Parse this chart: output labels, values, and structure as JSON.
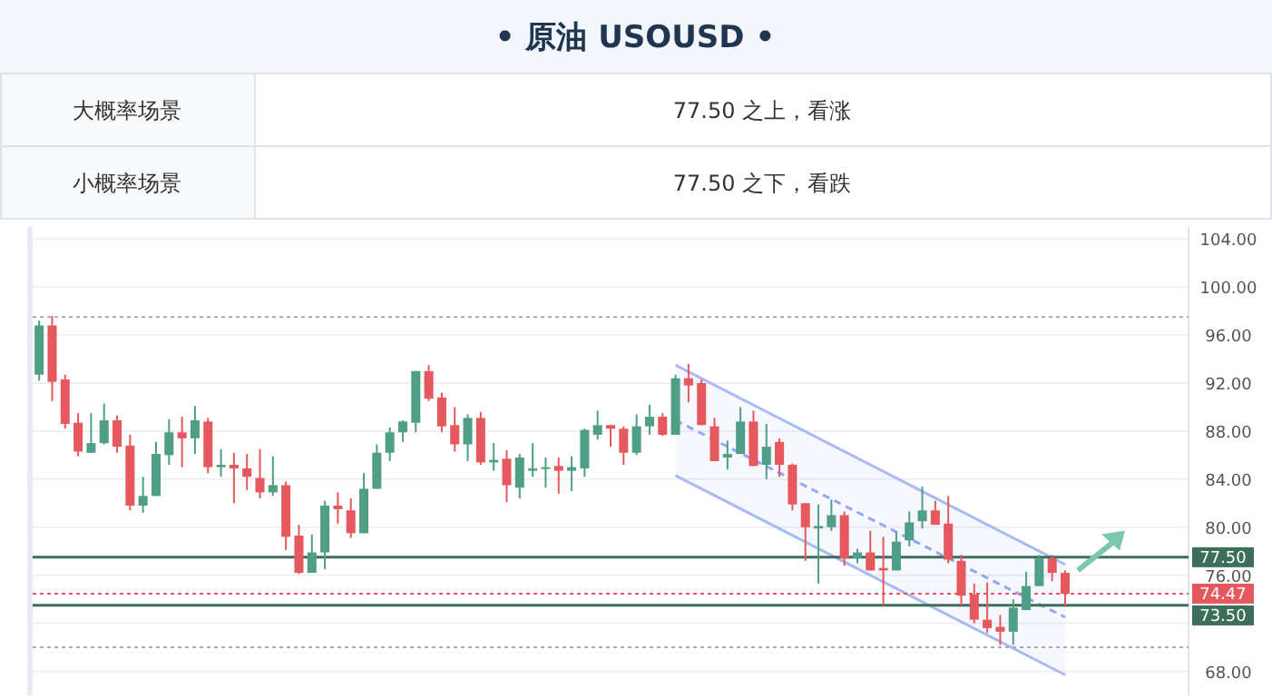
{
  "chart_data": {
    "type": "candlestick",
    "title": "• 原油 USOUSD •",
    "annotations": [
      "大概率场景",
      "77.50 之上，看涨",
      "小概率场景",
      "77.50 之下，看跌"
    ],
    "categories": [
      null,
      null,
      null,
      null,
      null,
      null,
      null,
      null,
      null,
      null,
      null,
      null,
      null,
      null,
      null,
      null,
      null,
      null,
      null,
      null,
      null,
      null,
      null,
      null,
      null,
      null,
      null,
      null,
      null,
      null,
      null,
      null,
      null,
      null,
      null,
      null,
      null,
      null,
      null,
      null,
      null,
      null,
      null,
      null,
      null,
      null,
      null,
      null,
      null,
      null,
      null,
      null,
      null,
      null,
      null,
      null,
      null,
      null,
      null,
      null,
      null,
      null,
      null,
      null,
      null,
      null,
      null,
      null,
      null,
      null,
      null,
      null,
      null,
      null,
      null,
      null,
      null,
      null,
      null,
      null,
      null,
      null,
      null,
      null,
      null,
      null,
      null,
      null,
      null
    ],
    "ohlc": [
      [
        92.7,
        97.2,
        92.2,
        96.8
      ],
      [
        96.8,
        97.6,
        90.5,
        92.1
      ],
      [
        92.3,
        92.7,
        88.2,
        88.6
      ],
      [
        88.7,
        89.5,
        85.9,
        86.3
      ],
      [
        86.2,
        89.5,
        86.2,
        87.0
      ],
      [
        87.0,
        90.3,
        86.9,
        88.9
      ],
      [
        88.9,
        89.3,
        86.2,
        86.7
      ],
      [
        86.8,
        87.7,
        81.4,
        81.8
      ],
      [
        81.8,
        84.2,
        81.2,
        82.6
      ],
      [
        82.6,
        87.1,
        82.6,
        86.1
      ],
      [
        86.0,
        89.0,
        85.2,
        87.9
      ],
      [
        87.9,
        89.2,
        85.0,
        87.4
      ],
      [
        87.4,
        90.1,
        86.1,
        88.9
      ],
      [
        88.8,
        89.1,
        84.5,
        85.0
      ],
      [
        85.0,
        86.5,
        84.2,
        85.2
      ],
      [
        85.2,
        86.2,
        82.0,
        84.9
      ],
      [
        84.9,
        86.1,
        83.1,
        84.2
      ],
      [
        84.1,
        86.5,
        82.4,
        82.9
      ],
      [
        82.9,
        85.9,
        82.6,
        83.5
      ],
      [
        83.5,
        83.8,
        78.1,
        79.2
      ],
      [
        79.3,
        80.2,
        76.1,
        76.2
      ],
      [
        76.2,
        79.4,
        76.2,
        77.9
      ],
      [
        77.9,
        82.2,
        76.5,
        81.8
      ],
      [
        81.8,
        82.9,
        80.3,
        81.5
      ],
      [
        81.4,
        82.4,
        79.1,
        79.5
      ],
      [
        79.5,
        84.5,
        79.5,
        83.2
      ],
      [
        83.2,
        86.9,
        83.2,
        86.2
      ],
      [
        86.2,
        88.3,
        85.5,
        87.9
      ],
      [
        87.9,
        88.9,
        87.1,
        88.8
      ],
      [
        88.7,
        93.0,
        87.9,
        93.0
      ],
      [
        93.0,
        93.5,
        90.5,
        90.7
      ],
      [
        90.8,
        91.2,
        87.9,
        88.4
      ],
      [
        88.5,
        90.0,
        86.3,
        86.9
      ],
      [
        86.9,
        89.4,
        85.5,
        89.1
      ],
      [
        89.1,
        89.6,
        85.2,
        85.4
      ],
      [
        85.4,
        87.0,
        84.7,
        85.6
      ],
      [
        85.7,
        86.4,
        82.1,
        83.5
      ],
      [
        83.3,
        86.1,
        82.4,
        85.8
      ],
      [
        84.7,
        87.0,
        84.2,
        84.9
      ],
      [
        84.9,
        85.8,
        83.3,
        85.0
      ],
      [
        85.1,
        85.8,
        82.8,
        84.7
      ],
      [
        84.7,
        85.9,
        83.0,
        85.0
      ],
      [
        84.9,
        88.2,
        84.2,
        88.1
      ],
      [
        87.7,
        89.7,
        87.3,
        88.5
      ],
      [
        88.5,
        88.5,
        86.7,
        88.2
      ],
      [
        88.2,
        88.4,
        85.2,
        86.2
      ],
      [
        86.2,
        89.4,
        86.0,
        88.4
      ],
      [
        88.4,
        90.2,
        87.7,
        89.2
      ],
      [
        89.2,
        89.5,
        87.6,
        87.7
      ],
      [
        87.7,
        92.7,
        87.7,
        92.4
      ],
      [
        92.4,
        93.6,
        90.4,
        91.8
      ],
      [
        92.0,
        92.3,
        88.5,
        88.5
      ],
      [
        88.4,
        89.1,
        85.5,
        85.5
      ],
      [
        85.8,
        87.2,
        84.8,
        86.1
      ],
      [
        86.1,
        90.0,
        86.1,
        88.8
      ],
      [
        88.8,
        89.7,
        85.1,
        85.1
      ],
      [
        85.2,
        88.6,
        84.0,
        86.7
      ],
      [
        87.1,
        87.4,
        84.2,
        85.2
      ],
      [
        85.2,
        85.3,
        81.4,
        81.9
      ],
      [
        82.0,
        82.0,
        77.2,
        80.0
      ],
      [
        79.9,
        81.9,
        75.3,
        80.1
      ],
      [
        80.0,
        82.3,
        79.7,
        81.0
      ],
      [
        81.0,
        81.3,
        76.8,
        77.4
      ],
      [
        77.4,
        78.2,
        77.0,
        77.9
      ],
      [
        77.9,
        79.7,
        76.4,
        76.4
      ],
      [
        76.6,
        79.2,
        73.5,
        76.4
      ],
      [
        76.4,
        79.6,
        76.4,
        78.8
      ],
      [
        78.9,
        81.3,
        78.4,
        80.4
      ],
      [
        80.5,
        83.4,
        79.9,
        81.4
      ],
      [
        81.4,
        82.2,
        80.2,
        80.2
      ],
      [
        80.3,
        82.6,
        77.0,
        77.3
      ],
      [
        77.2,
        77.7,
        73.5,
        74.3
      ],
      [
        74.4,
        75.3,
        72.0,
        72.3
      ],
      [
        72.3,
        75.4,
        71.2,
        71.6
      ],
      [
        71.7,
        72.7,
        70.2,
        71.3
      ],
      [
        71.3,
        74.0,
        70.2,
        73.3
      ],
      [
        73.1,
        76.3,
        73.1,
        75.1
      ],
      [
        75.1,
        77.7,
        75.1,
        77.4
      ],
      [
        77.4,
        77.7,
        75.5,
        76.2
      ],
      [
        76.2,
        76.4,
        73.5,
        74.47
      ],
      null,
      null,
      null,
      null,
      null,
      null,
      null,
      null,
      null
    ],
    "colors": [
      "#4f9e86",
      "#e5585d",
      "#e5585d",
      "#e5585d",
      "#4f9e86",
      "#4f9e86",
      "#e5585d",
      "#e5585d",
      "#4f9e86",
      "#4f9e86",
      "#4f9e86",
      "#e5585d",
      "#4f9e86",
      "#e5585d",
      "#4f9e86",
      "#e5585d",
      "#e5585d",
      "#e5585d",
      "#4f9e86",
      "#e5585d",
      "#e5585d",
      "#4f9e86",
      "#4f9e86",
      "#e5585d",
      "#e5585d",
      "#4f9e86",
      "#4f9e86",
      "#4f9e86",
      "#4f9e86",
      "#4f9e86",
      "#e5585d",
      "#e5585d",
      "#e5585d",
      "#4f9e86",
      "#e5585d",
      "#4f9e86",
      "#e5585d",
      "#4f9e86",
      "#4f9e86",
      "#4f9e86",
      "#e5585d",
      "#4f9e86",
      "#4f9e86",
      "#4f9e86",
      "#e5585d",
      "#e5585d",
      "#4f9e86",
      "#4f9e86",
      "#e5585d",
      "#4f9e86",
      "#e5585d",
      "#e5585d",
      "#e5585d",
      "#4f9e86",
      "#4f9e86",
      "#e5585d",
      "#4f9e86",
      "#e5585d",
      "#e5585d",
      "#e5585d",
      "#4f9e86",
      "#4f9e86",
      "#e5585d",
      "#4f9e86",
      "#e5585d",
      "#e5585d",
      "#4f9e86",
      "#4f9e86",
      "#4f9e86",
      "#e5585d",
      "#e5585d",
      "#e5585d",
      "#e5585d",
      "#e5585d",
      "#e5585d",
      "#4f9e86",
      "#4f9e86",
      "#4f9e86",
      "#e5585d",
      "#e5585d",
      null,
      null,
      null,
      null,
      null,
      null,
      null,
      null,
      null
    ],
    "series": [
      {
        "type": "line",
        "color": "#aabcf3",
        "line_style": "solid",
        "values": [
          null,
          null,
          null,
          null,
          null,
          null,
          null,
          null,
          null,
          null,
          null,
          null,
          null,
          null,
          null,
          null,
          null,
          null,
          null,
          null,
          null,
          null,
          null,
          null,
          null,
          null,
          null,
          null,
          null,
          null,
          null,
          null,
          null,
          null,
          null,
          null,
          null,
          null,
          null,
          null,
          null,
          null,
          null,
          null,
          null,
          null,
          null,
          null,
          null,
          93.5,
          null,
          null,
          null,
          null,
          null,
          null,
          null,
          null,
          null,
          null,
          null,
          null,
          null,
          null,
          null,
          null,
          null,
          null,
          null,
          null,
          null,
          null,
          null,
          null,
          null,
          null,
          null,
          null,
          null,
          76.9,
          null,
          null,
          null,
          null,
          null,
          null,
          null,
          null,
          null
        ]
      },
      {
        "type": "line",
        "color": "#aabcf3",
        "line_style": "solid",
        "values": [
          null,
          null,
          null,
          null,
          null,
          null,
          null,
          null,
          null,
          null,
          null,
          null,
          null,
          null,
          null,
          null,
          null,
          null,
          null,
          null,
          null,
          null,
          null,
          null,
          null,
          null,
          null,
          null,
          null,
          null,
          null,
          null,
          null,
          null,
          null,
          null,
          null,
          null,
          null,
          null,
          null,
          null,
          null,
          null,
          null,
          null,
          null,
          null,
          null,
          84.3,
          null,
          null,
          null,
          null,
          null,
          null,
          null,
          null,
          null,
          null,
          null,
          null,
          null,
          null,
          null,
          null,
          null,
          null,
          null,
          null,
          null,
          null,
          null,
          null,
          null,
          null,
          null,
          null,
          null,
          67.7,
          null,
          null,
          null,
          null,
          null,
          null,
          null,
          null,
          null
        ]
      },
      {
        "type": "line",
        "color": "#8fa8f0",
        "line_style": "dashed",
        "values": [
          null,
          null,
          null,
          null,
          null,
          null,
          null,
          null,
          null,
          null,
          null,
          null,
          null,
          null,
          null,
          null,
          null,
          null,
          null,
          null,
          null,
          null,
          null,
          null,
          null,
          null,
          null,
          null,
          null,
          null,
          null,
          null,
          null,
          null,
          null,
          null,
          null,
          null,
          null,
          null,
          null,
          null,
          null,
          null,
          null,
          null,
          null,
          null,
          null,
          88.9,
          null,
          null,
          null,
          null,
          null,
          null,
          null,
          null,
          null,
          null,
          null,
          null,
          null,
          null,
          null,
          null,
          null,
          null,
          null,
          null,
          null,
          null,
          null,
          null,
          null,
          null,
          null,
          null,
          null,
          72.5,
          null,
          null,
          null,
          null,
          null,
          null,
          null,
          null,
          null
        ],
        "lower": [
          null,
          null,
          null,
          null,
          null,
          null,
          null,
          null,
          null,
          null,
          null,
          null,
          null,
          null,
          null,
          null,
          null,
          null,
          null,
          null,
          null,
          null,
          null,
          null,
          null,
          null,
          null,
          null,
          null,
          null,
          null,
          null,
          null,
          null,
          null,
          null,
          null,
          null,
          null,
          null,
          null,
          null,
          null,
          null,
          null,
          null,
          null,
          null,
          null,
          84.3,
          null,
          null,
          null,
          null,
          null,
          null,
          null,
          null,
          null,
          null,
          null,
          null,
          null,
          null,
          null,
          null,
          null,
          null,
          null,
          null,
          null,
          null,
          null,
          null,
          null,
          null,
          null,
          null,
          null,
          67.7,
          null,
          null,
          null,
          null,
          null,
          null,
          null,
          null,
          null
        ],
        "upper": [
          null,
          null,
          null,
          null,
          null,
          null,
          null,
          null,
          null,
          null,
          null,
          null,
          null,
          null,
          null,
          null,
          null,
          null,
          null,
          null,
          null,
          null,
          null,
          null,
          null,
          null,
          null,
          null,
          null,
          null,
          null,
          null,
          null,
          null,
          null,
          null,
          null,
          null,
          null,
          null,
          null,
          null,
          null,
          null,
          null,
          null,
          null,
          null,
          null,
          93.5,
          null,
          null,
          null,
          null,
          null,
          null,
          null,
          null,
          null,
          null,
          null,
          null,
          null,
          null,
          null,
          null,
          null,
          null,
          null,
          null,
          null,
          null,
          null,
          null,
          null,
          null,
          null,
          null,
          null,
          76.9,
          null,
          null,
          null,
          null,
          null,
          null,
          null,
          null,
          null
        ]
      }
    ],
    "ylim": [
      66,
      105
    ],
    "yticks": [
      {
        "value": 68,
        "label": "68.00"
      },
      {
        "value": 72,
        "label": null
      },
      {
        "value": 76,
        "label": "76.00"
      },
      {
        "value": 80,
        "label": "80.00"
      },
      {
        "value": 84,
        "label": "84.00"
      },
      {
        "value": 88,
        "label": "88.00"
      },
      {
        "value": 92,
        "label": "92.00"
      },
      {
        "value": 96,
        "label": "96.00"
      },
      {
        "value": 100,
        "label": "100.00"
      },
      {
        "value": 104,
        "label": "104.00"
      }
    ],
    "ref_lines": [
      {
        "axis": "y",
        "value": 97.5,
        "color": "#aaaaaa",
        "line_style": "dotted"
      },
      {
        "axis": "y",
        "value": 70.0,
        "color": "#aaaaaa",
        "line_style": "dotted"
      },
      {
        "axis": "y",
        "value": 74.47,
        "label": "74.47",
        "color": "#e5585d",
        "line_style": "dotted"
      },
      {
        "axis": "y",
        "value": 77.5,
        "label": "77.50",
        "color": "#3d6e5a",
        "line_style": "solid"
      },
      {
        "axis": "y",
        "value": 73.5,
        "label": "73.50",
        "color": "#3d6e5a",
        "line_style": "solid"
      }
    ],
    "tick_labels": "y",
    "grid": "y"
  }
}
